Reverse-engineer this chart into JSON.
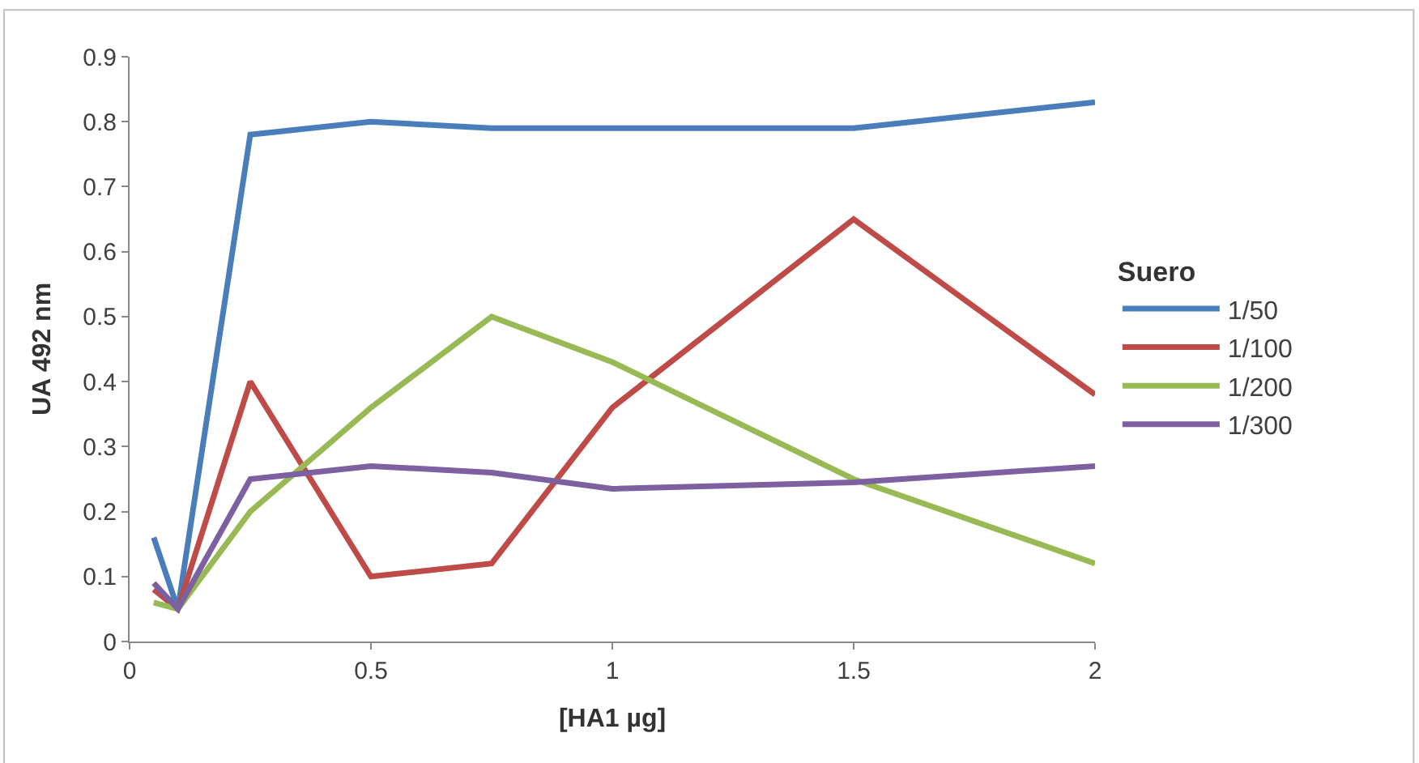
{
  "chart_data": {
    "type": "line",
    "xlabel": "[HA1 µg]",
    "ylabel": "UA 492 nm",
    "legend_title": "Suero",
    "legend": "right",
    "grid": false,
    "marker": "none",
    "line_style": "solid",
    "x": [
      0.05,
      0.1,
      0.25,
      0.5,
      0.75,
      1,
      1.5,
      2
    ],
    "xlim": [
      0,
      2
    ],
    "xticks": [
      0,
      0.5,
      1,
      1.5,
      2
    ],
    "ylim": [
      0,
      0.9
    ],
    "yticks": [
      0,
      0.1,
      0.2,
      0.3,
      0.4,
      0.5,
      0.6,
      0.7,
      0.8,
      0.9
    ],
    "series": [
      {
        "name": "1/50",
        "color": "#4a7ebb",
        "values": [
          0.16,
          0.05,
          0.78,
          0.8,
          0.79,
          0.79,
          0.79,
          0.83
        ]
      },
      {
        "name": "1/100",
        "color": "#be4b48",
        "values": [
          0.08,
          0.05,
          0.4,
          0.1,
          0.12,
          0.36,
          0.65,
          0.38
        ]
      },
      {
        "name": "1/200",
        "color": "#98b954",
        "values": [
          0.06,
          0.05,
          0.2,
          0.36,
          0.5,
          0.43,
          0.25,
          0.12
        ]
      },
      {
        "name": "1/300",
        "color": "#7d60a0",
        "values": [
          0.09,
          0.05,
          0.25,
          0.27,
          0.26,
          0.235,
          0.245,
          0.27
        ]
      }
    ]
  }
}
